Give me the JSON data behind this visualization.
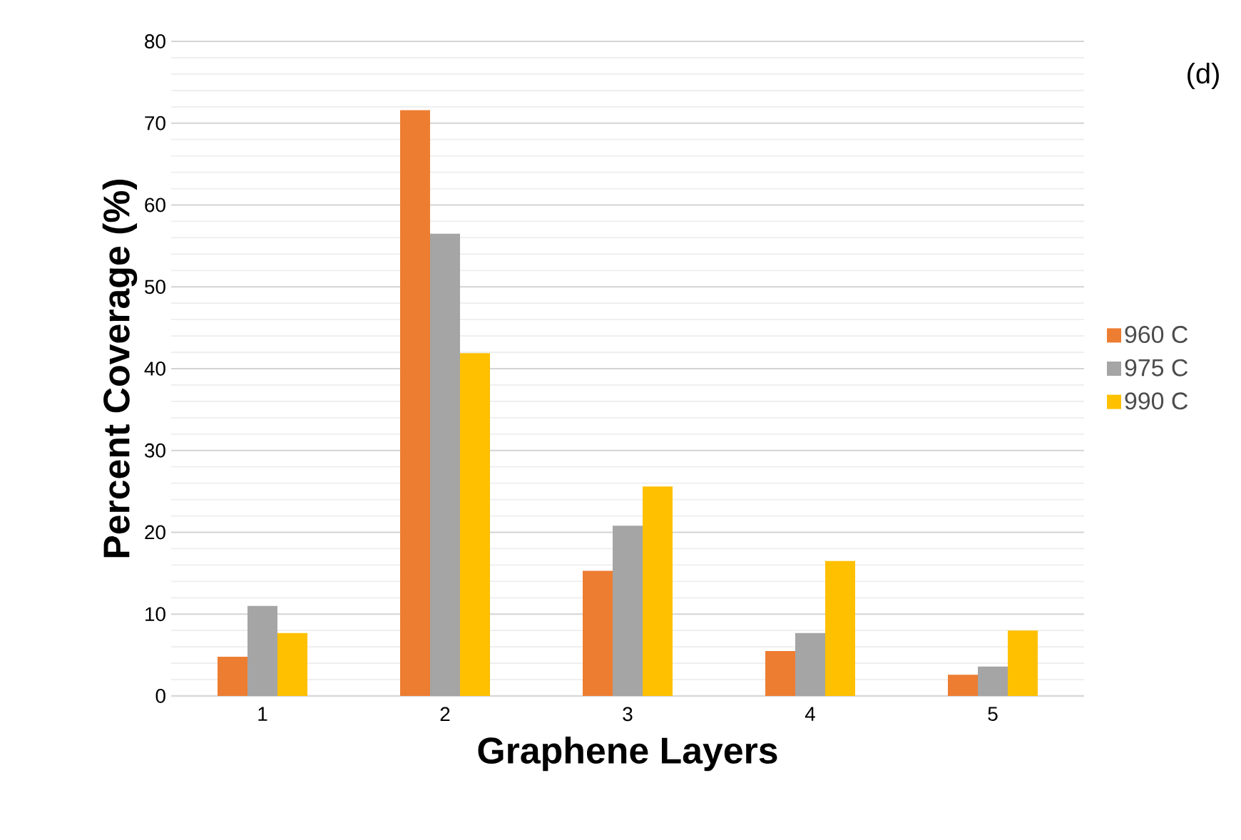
{
  "chart_data": {
    "type": "bar",
    "xlabel": "Graphene Layers",
    "ylabel": "Percent Coverage (%)",
    "categories": [
      "1",
      "2",
      "3",
      "4",
      "5"
    ],
    "series": [
      {
        "name": "960 C",
        "color": "#ed7d31",
        "values": [
          4.8,
          71.6,
          15.3,
          5.5,
          2.6
        ]
      },
      {
        "name": "975 C",
        "color": "#a5a5a5",
        "values": [
          11.0,
          56.5,
          20.8,
          7.7,
          3.6
        ]
      },
      {
        "name": "990 C",
        "color": "#ffc000",
        "values": [
          7.7,
          41.9,
          25.6,
          16.5,
          8.0
        ]
      }
    ],
    "ylim": [
      0,
      80
    ],
    "yticks": [
      0,
      10,
      20,
      30,
      40,
      50,
      60,
      70,
      80
    ],
    "grid": "y",
    "legend": "right",
    "annotations": [
      "(d)"
    ]
  }
}
